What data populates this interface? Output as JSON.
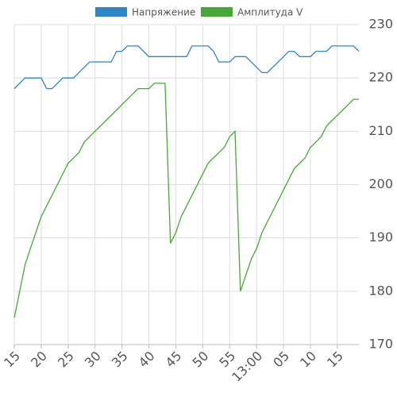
{
  "chart_data": {
    "type": "line",
    "x": [
      15,
      16,
      17,
      18,
      19,
      20,
      21,
      22,
      23,
      24,
      25,
      26,
      27,
      28,
      29,
      30,
      31,
      32,
      33,
      34,
      35,
      36,
      37,
      38,
      39,
      40,
      41,
      42,
      43,
      44,
      45,
      46,
      47,
      48,
      49,
      50,
      51,
      52,
      53,
      54,
      55,
      56,
      57,
      58,
      59,
      60,
      61,
      62,
      63,
      64,
      65,
      66,
      67,
      68,
      69,
      70,
      71,
      72,
      73,
      74,
      75,
      76,
      77,
      78,
      79
    ],
    "series": [
      {
        "name": "Напряжение",
        "color": "#2f86c3",
        "values": [
          218,
          219,
          220,
          220,
          220,
          220,
          218,
          218,
          219,
          220,
          220,
          220,
          221,
          222,
          223,
          223,
          223,
          223,
          223,
          225,
          225,
          226,
          226,
          226,
          225,
          224,
          224,
          224,
          224,
          224,
          224,
          224,
          224,
          226,
          226,
          226,
          226,
          225,
          223,
          223,
          223,
          224,
          224,
          224,
          223,
          222,
          221,
          221,
          222,
          223,
          224,
          225,
          225,
          224,
          224,
          224,
          225,
          225,
          225,
          226,
          226,
          226,
          226,
          226,
          225
        ]
      },
      {
        "name": "Амплитуда V",
        "color": "#4aa63a",
        "values": [
          175,
          180,
          185,
          188,
          191,
          194,
          196,
          198,
          200,
          202,
          204,
          205,
          206,
          208,
          209,
          210,
          211,
          212,
          213,
          214,
          215,
          216,
          217,
          218,
          218,
          218,
          219,
          219,
          219,
          189,
          191,
          194,
          196,
          198,
          200,
          202,
          204,
          205,
          206,
          207,
          209,
          210,
          180,
          183,
          186,
          188,
          191,
          193,
          195,
          197,
          199,
          201,
          203,
          204,
          205,
          207,
          208,
          209,
          211,
          212,
          213,
          214,
          215,
          216,
          216
        ]
      }
    ],
    "xlim": [
      15,
      79
    ],
    "xticks": [
      15,
      20,
      25,
      30,
      35,
      40,
      45,
      50,
      55,
      {
        "value": 60,
        "label": "13:00"
      },
      {
        "value": 65,
        "label": "05"
      },
      {
        "value": 70,
        "label": "10"
      },
      {
        "value": 75,
        "label": "15"
      }
    ],
    "ylim": [
      170,
      230
    ],
    "yticks": [
      170,
      180,
      190,
      200,
      210,
      220,
      230
    ],
    "y_axis_side": "right",
    "grid": true,
    "legend": "top"
  }
}
